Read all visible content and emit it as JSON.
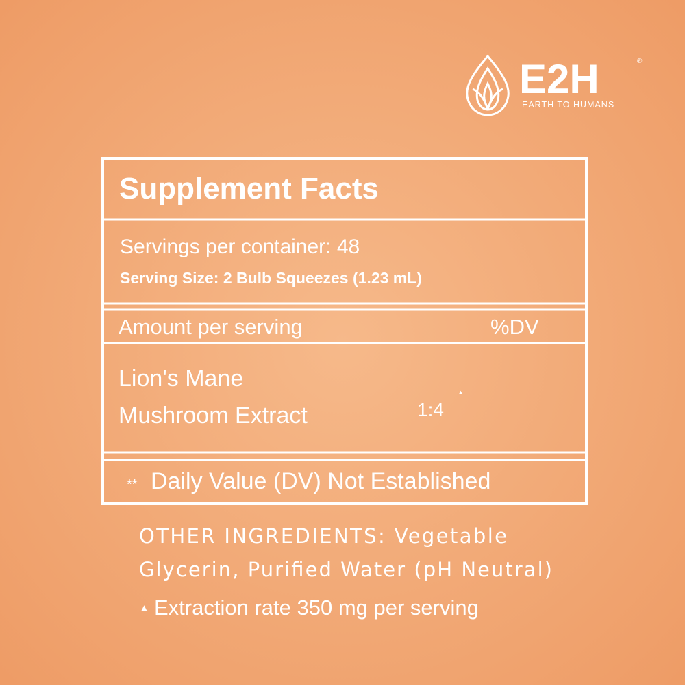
{
  "logo": {
    "name": "E2H",
    "registered": "®",
    "tagline": "EARTH TO HUMANS"
  },
  "panel": {
    "title": "Supplement Facts",
    "servings_per_container": "Servings per container: 48",
    "serving_size": "Serving Size: 2 Bulb Squeezes (1.23 mL)",
    "header": {
      "amount": "Amount per serving",
      "dv": "%DV"
    },
    "ingredient": {
      "name_line1": "Lion's Mane",
      "name_line2": "Mushroom Extract",
      "ratio": "1:4",
      "ratio_marker": "▲"
    },
    "footnote": {
      "marker": "**",
      "text": "Daily Value (DV) Not Established"
    }
  },
  "other_ingredients": {
    "line1": "OTHER INGREDIENTS: Vegetable",
    "line2": "Glycerin, Purified Water (pH Neutral)",
    "extraction_marker": "▲",
    "extraction": "Extraction rate 350 mg per serving"
  }
}
